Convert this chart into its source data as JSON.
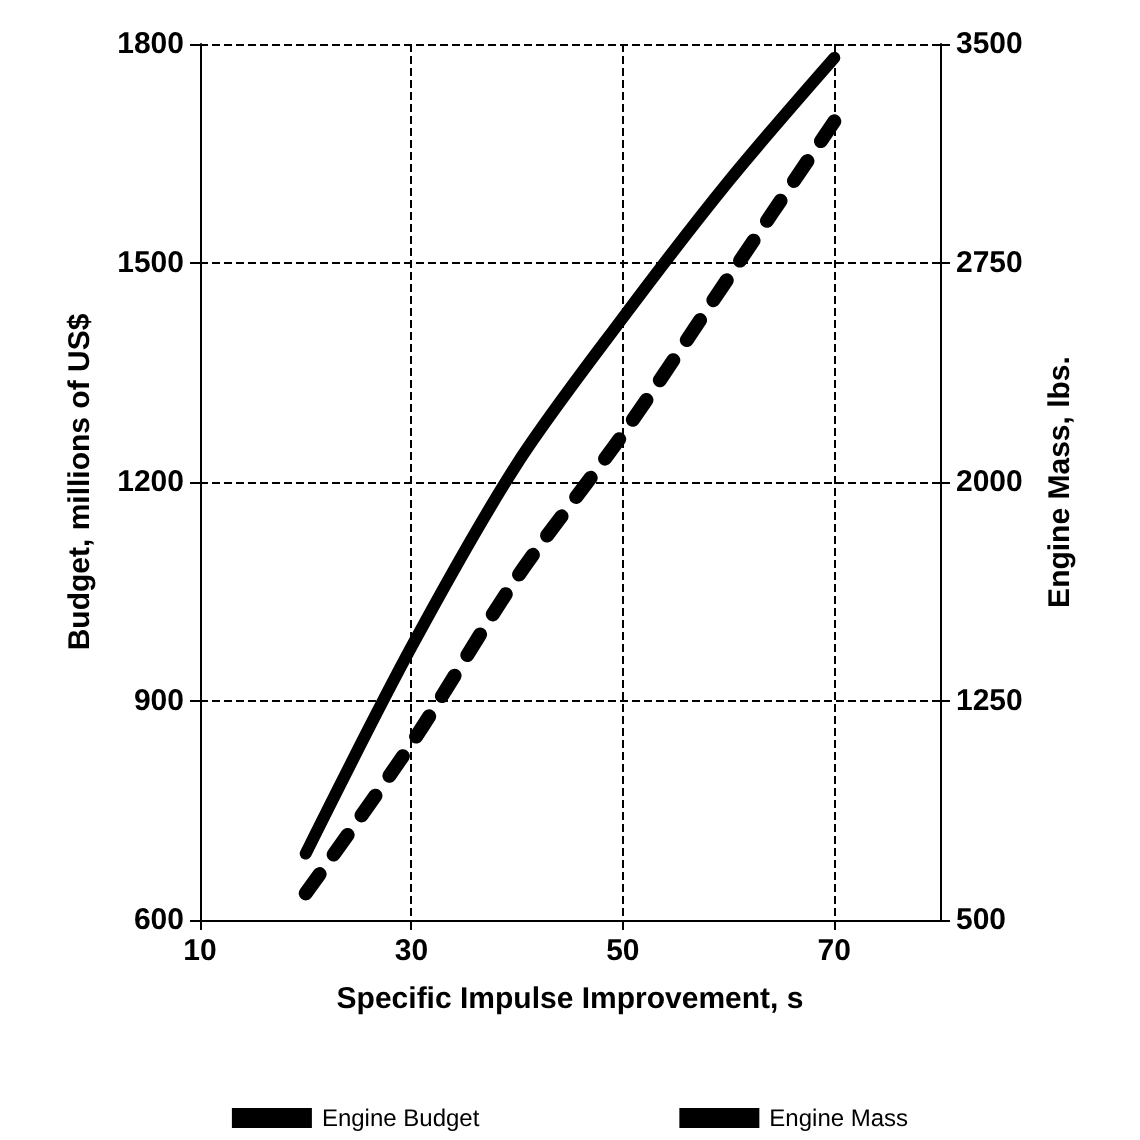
{
  "chart_data": {
    "type": "line",
    "xlabel": "Specific Impulse Improvement, s",
    "ylabel": "Budget, millions of US$",
    "y2label": "Engine Mass, lbs.",
    "x": [
      20,
      30,
      40,
      50,
      60,
      70
    ],
    "series": [
      {
        "name": "Engine Budget",
        "color": "#000000",
        "values": [
          691,
          974,
          1225,
          1425,
          1612,
          1781
        ],
        "line_style": "solid"
      },
      {
        "name": "Engine Mass",
        "color": "#000000",
        "values": [
          591,
          1104,
          1674,
          2164,
          2700,
          3235
        ],
        "axis": "y2",
        "line_style": "dashed"
      }
    ],
    "xlim": [
      10,
      80
    ],
    "xticks": [
      10,
      30,
      50,
      70
    ],
    "ylim": [
      600,
      1800
    ],
    "yticks": [
      600,
      900,
      1200,
      1500,
      1800
    ],
    "y2lim": [
      500,
      3500
    ],
    "y2ticks": [
      500,
      1250,
      2000,
      2750,
      3500
    ],
    "grid": true,
    "legend": "bottom",
    "marker": "none"
  }
}
